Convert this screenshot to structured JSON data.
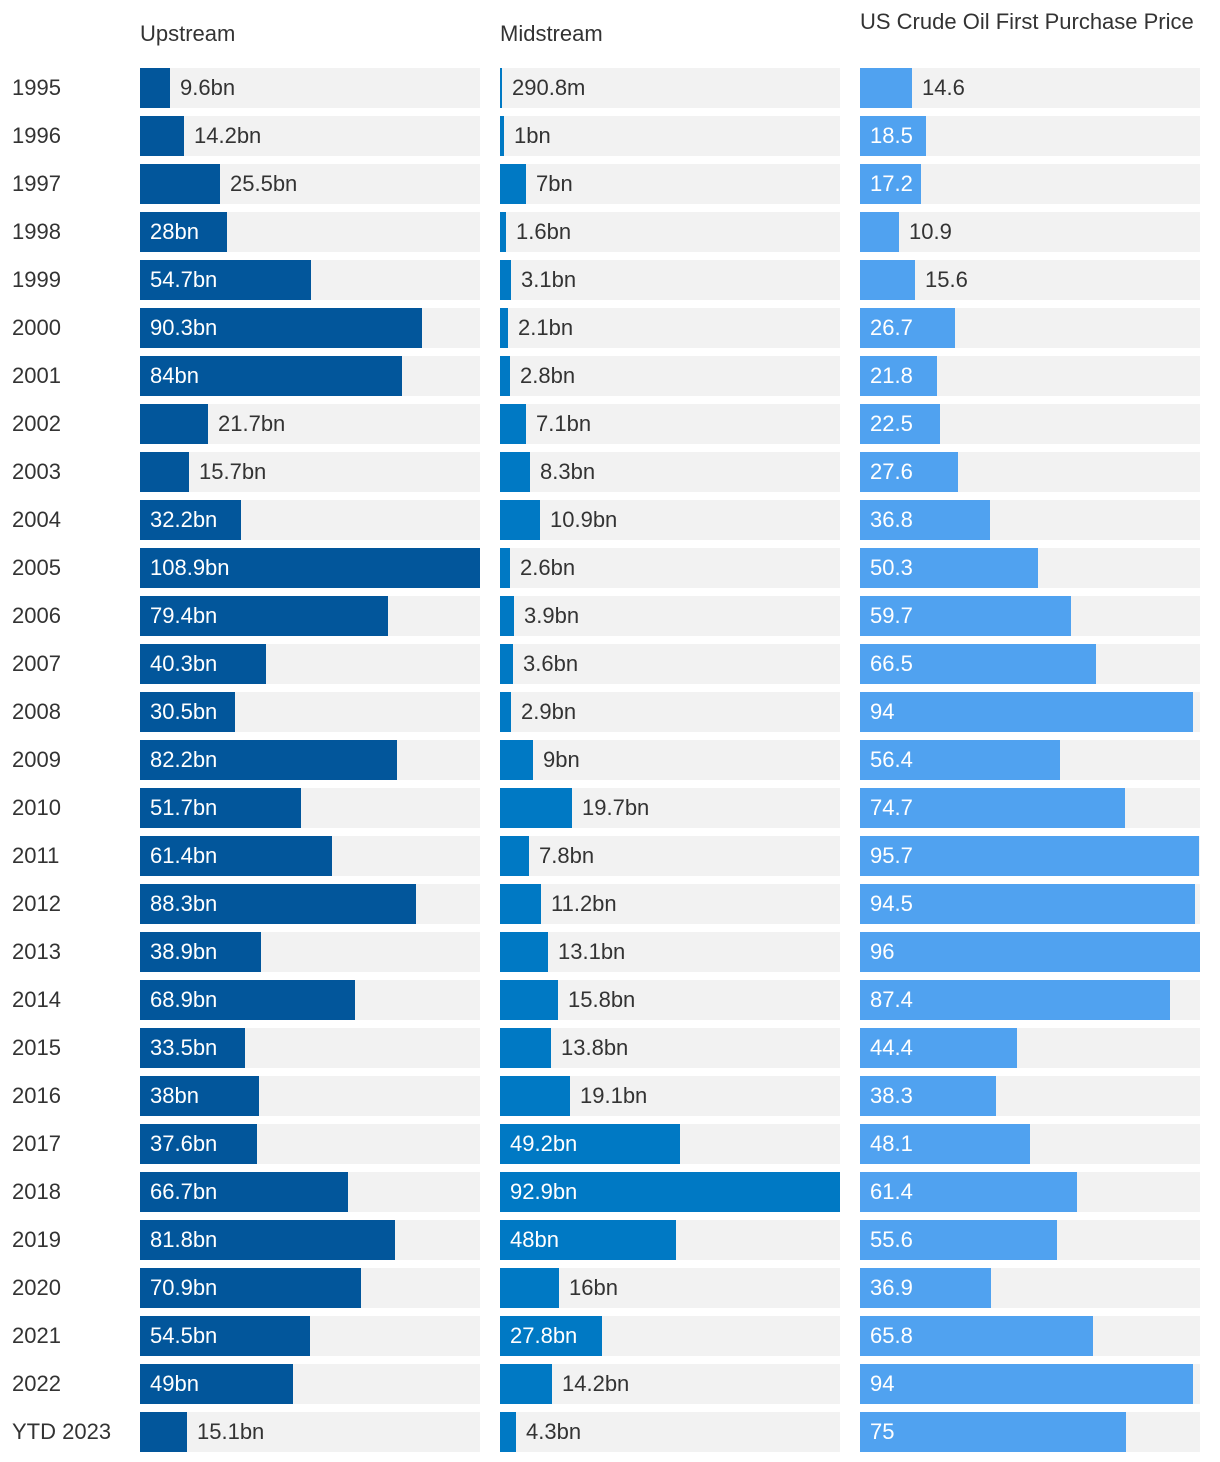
{
  "chart_data": {
    "type": "bar",
    "orientation": "horizontal",
    "categories": [
      "1995",
      "1996",
      "1997",
      "1998",
      "1999",
      "2000",
      "2001",
      "2002",
      "2003",
      "2004",
      "2005",
      "2006",
      "2007",
      "2008",
      "2009",
      "2010",
      "2011",
      "2012",
      "2013",
      "2014",
      "2015",
      "2016",
      "2017",
      "2018",
      "2019",
      "2020",
      "2021",
      "2022",
      "YTD 2023"
    ],
    "series": [
      {
        "name": "Upstream",
        "color": "#02569b",
        "values": [
          9.6,
          14.2,
          25.5,
          28,
          54.7,
          90.3,
          84,
          21.7,
          15.7,
          32.2,
          108.9,
          79.4,
          40.3,
          30.5,
          82.2,
          51.7,
          61.4,
          88.3,
          38.9,
          68.9,
          33.5,
          38,
          37.6,
          66.7,
          81.8,
          70.9,
          54.5,
          49,
          15.1
        ],
        "labels": [
          "9.6bn",
          "14.2bn",
          "25.5bn",
          "28bn",
          "54.7bn",
          "90.3bn",
          "84bn",
          "21.7bn",
          "15.7bn",
          "32.2bn",
          "108.9bn",
          "79.4bn",
          "40.3bn",
          "30.5bn",
          "82.2bn",
          "51.7bn",
          "61.4bn",
          "88.3bn",
          "38.9bn",
          "68.9bn",
          "33.5bn",
          "38bn",
          "37.6bn",
          "66.7bn",
          "81.8bn",
          "70.9bn",
          "54.5bn",
          "49bn",
          "15.1bn"
        ],
        "max": 108.9
      },
      {
        "name": "Midstream",
        "color": "#0079c4",
        "values": [
          0.2908,
          1,
          7,
          1.6,
          3.1,
          2.1,
          2.8,
          7.1,
          8.3,
          10.9,
          2.6,
          3.9,
          3.6,
          2.9,
          9,
          19.7,
          7.8,
          11.2,
          13.1,
          15.8,
          13.8,
          19.1,
          49.2,
          92.9,
          48,
          16,
          27.8,
          14.2,
          4.3
        ],
        "labels": [
          "290.8m",
          "1bn",
          "7bn",
          "1.6bn",
          "3.1bn",
          "2.1bn",
          "2.8bn",
          "7.1bn",
          "8.3bn",
          "10.9bn",
          "2.6bn",
          "3.9bn",
          "3.6bn",
          "2.9bn",
          "9bn",
          "19.7bn",
          "7.8bn",
          "11.2bn",
          "13.1bn",
          "15.8bn",
          "13.8bn",
          "19.1bn",
          "49.2bn",
          "92.9bn",
          "48bn",
          "16bn",
          "27.8bn",
          "14.2bn",
          "4.3bn"
        ],
        "max": 92.9
      },
      {
        "name": "US Crude Oil First Purchase Price",
        "color": "#50a2f0",
        "values": [
          14.6,
          18.5,
          17.2,
          10.9,
          15.6,
          26.7,
          21.8,
          22.5,
          27.6,
          36.8,
          50.3,
          59.7,
          66.5,
          94,
          56.4,
          74.7,
          95.7,
          94.5,
          96,
          87.4,
          44.4,
          38.3,
          48.1,
          61.4,
          55.6,
          36.9,
          65.8,
          94,
          75
        ],
        "labels": [
          "14.6",
          "18.5",
          "17.2",
          "10.9",
          "15.6",
          "26.7",
          "21.8",
          "22.5",
          "27.6",
          "36.8",
          "50.3",
          "59.7",
          "66.5",
          "94",
          "56.4",
          "74.7",
          "95.7",
          "94.5",
          "96",
          "87.4",
          "44.4",
          "38.3",
          "48.1",
          "61.4",
          "55.6",
          "36.9",
          "65.8",
          "94",
          "75"
        ],
        "max": 96
      }
    ],
    "title": "",
    "xlabel": "",
    "ylabel": "",
    "grid": false,
    "legend": "none"
  }
}
